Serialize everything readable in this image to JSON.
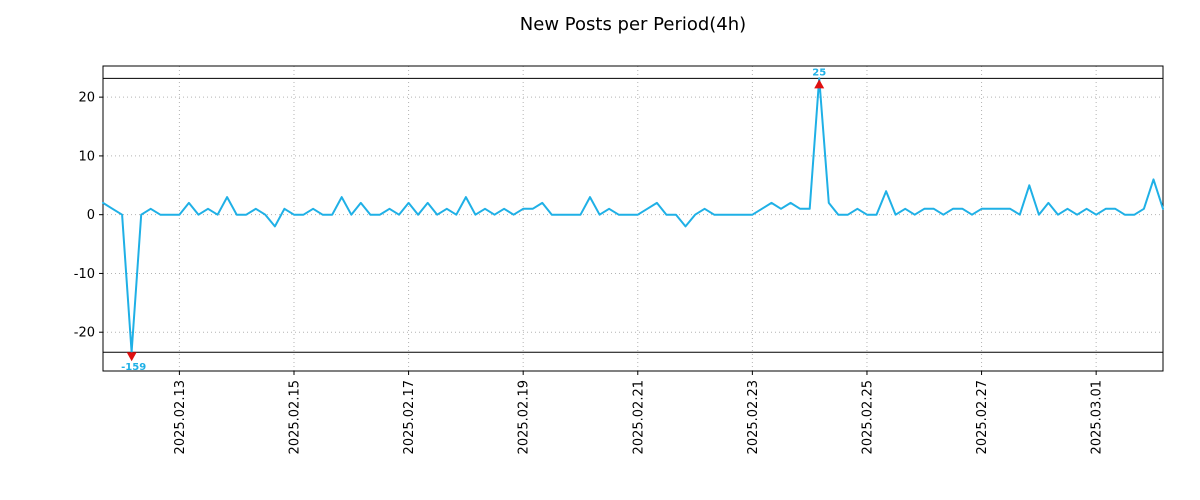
{
  "chart_data": {
    "type": "line",
    "title": "New Posts per Period(4h)",
    "period_hours": 4,
    "line_color": "#1fb0e6",
    "marker_color": "#e01010",
    "annotation_color": "#1fb0e6",
    "grid": true,
    "legend": "none",
    "ylim": [
      -26.6,
      25.3
    ],
    "yticks": [
      -20,
      -10,
      0,
      10,
      20
    ],
    "clip_lines": [
      23.2,
      -23.4
    ],
    "x_tick_labels": [
      "2025.02.13",
      "2025.02.15",
      "2025.02.17",
      "2025.02.19",
      "2025.02.21",
      "2025.02.23",
      "2025.02.25",
      "2025.02.27",
      "2025.03.01"
    ],
    "x_tick_indices": [
      8,
      20,
      32,
      44,
      56,
      68,
      80,
      92,
      104
    ],
    "values": [
      2,
      1,
      0,
      -159,
      0,
      1,
      0,
      0,
      0,
      2,
      0,
      1,
      0,
      3,
      0,
      0,
      1,
      0,
      -2,
      1,
      0,
      0,
      1,
      0,
      0,
      3,
      0,
      2,
      0,
      0,
      1,
      0,
      2,
      0,
      2,
      0,
      1,
      0,
      3,
      0,
      1,
      0,
      1,
      0,
      1,
      1,
      2,
      0,
      0,
      0,
      0,
      3,
      0,
      1,
      0,
      0,
      0,
      1,
      2,
      0,
      0,
      -2,
      0,
      1,
      0,
      0,
      0,
      0,
      0,
      1,
      2,
      1,
      2,
      1,
      1,
      25,
      2,
      0,
      0,
      1,
      0,
      0,
      4,
      0,
      1,
      0,
      1,
      1,
      0,
      1,
      1,
      0,
      1,
      1,
      1,
      1,
      0,
      5,
      0,
      2,
      0,
      1,
      0,
      1,
      0,
      1,
      1,
      0,
      0,
      1,
      6,
      1
    ],
    "annotations": [
      {
        "index": 3,
        "value": -159,
        "label": "-159",
        "direction": "down"
      },
      {
        "index": 75,
        "value": 25,
        "label": "25",
        "direction": "up"
      }
    ]
  }
}
